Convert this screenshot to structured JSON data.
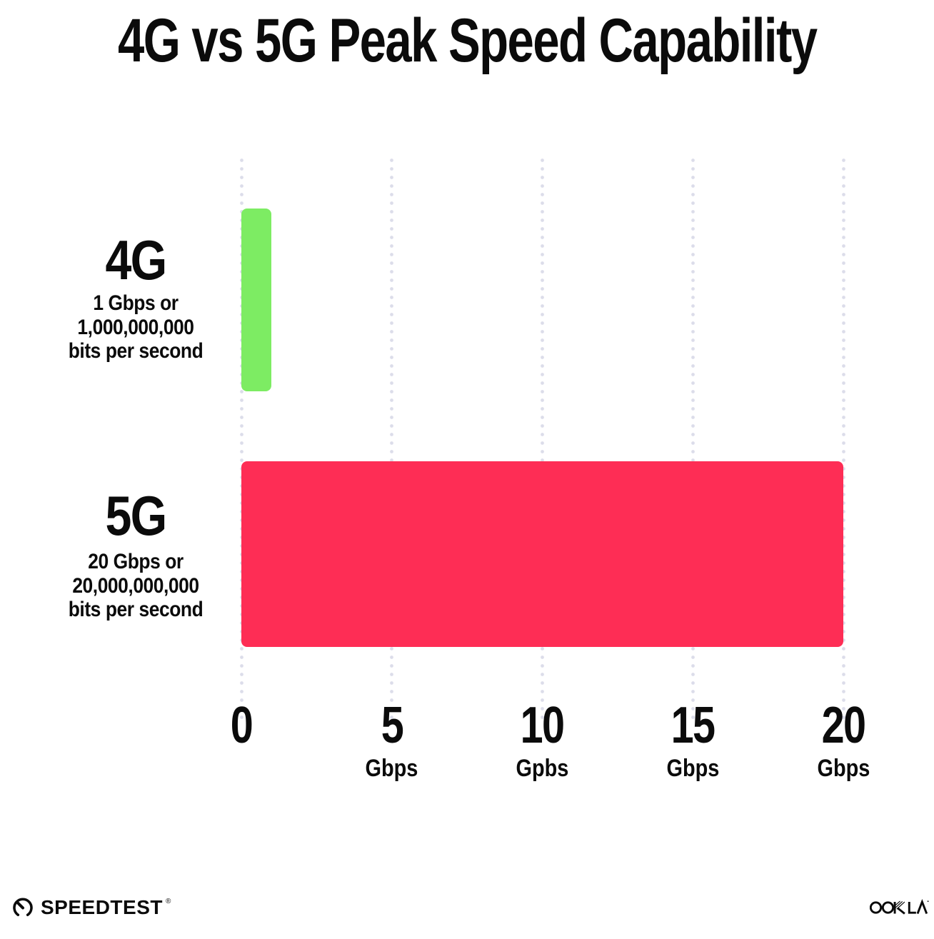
{
  "title": "4G vs 5G Peak Speed Capability",
  "colors": {
    "background": "#FFFFFF",
    "text": "#0B0B0B",
    "grid_dots": "#DCDDEA",
    "bar_4g": "#7DEC63",
    "bar_5g": "#FE2D55"
  },
  "chart_data": {
    "type": "bar",
    "orientation": "horizontal",
    "title": "4G vs 5G Peak Speed Capability",
    "categories": [
      "4G",
      "5G"
    ],
    "values": [
      1,
      20
    ],
    "value_unit": "Gbps",
    "category_annotations": [
      [
        "1 Gbps or",
        "1,000,000,000",
        "bits per second"
      ],
      [
        "20 Gbps or",
        "20,000,000,000",
        "bits per second"
      ]
    ],
    "bar_colors": [
      "#7DEC63",
      "#FE2D55"
    ],
    "xlabel": "",
    "ylabel": "",
    "xlim": [
      0,
      20
    ],
    "xticks": [
      {
        "value": 0,
        "label": "0",
        "sublabel": ""
      },
      {
        "value": 5,
        "label": "5",
        "sublabel": "Gbps"
      },
      {
        "value": 10,
        "label": "10",
        "sublabel": "Gpbs"
      },
      {
        "value": 15,
        "label": "15",
        "sublabel": "Gbps"
      },
      {
        "value": 20,
        "label": "20",
        "sublabel": "Gbps"
      }
    ],
    "grid": "vertical-dotted",
    "legend": "none"
  },
  "footer": {
    "speedtest_label": "SPEEDTEST",
    "speedtest_mark": "®",
    "ookla_label": "OOKLA",
    "ookla_mark": "’"
  }
}
